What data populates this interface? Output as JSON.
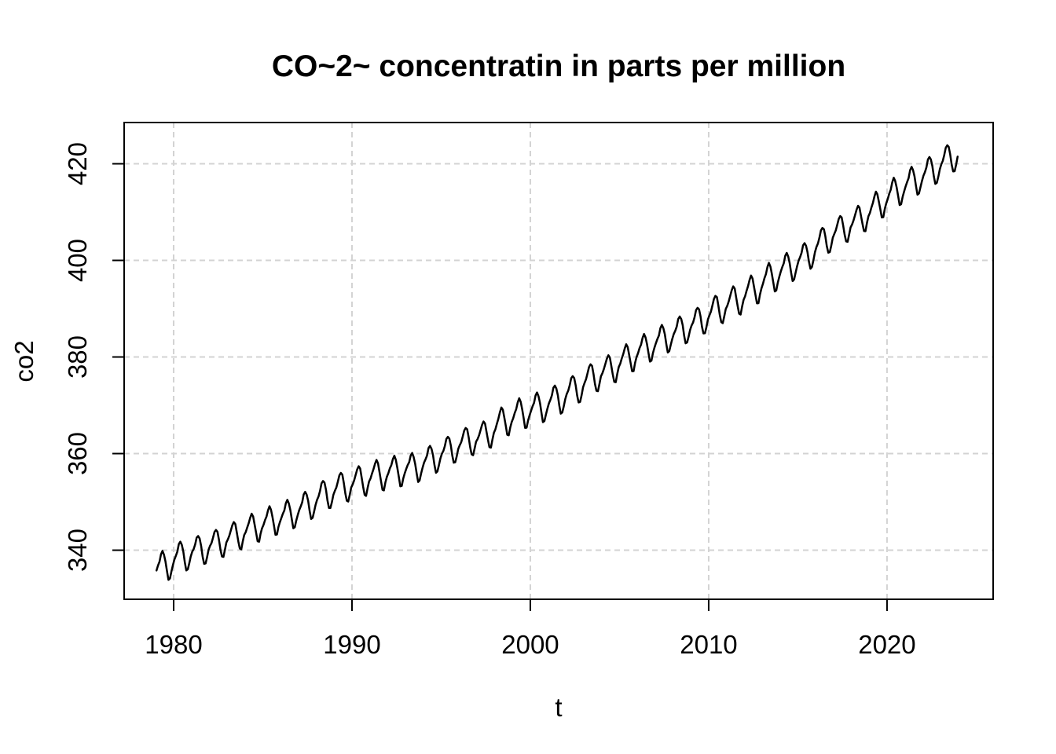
{
  "figure": {
    "background_color": "#ffffff"
  },
  "chart_data": {
    "type": "line",
    "title": "CO~2~ concentratin in parts per million",
    "xlabel": "t",
    "ylabel": "co2",
    "x_ticks": [
      1980,
      1990,
      2000,
      2010,
      2020
    ],
    "y_ticks": [
      340,
      360,
      380,
      400,
      420
    ],
    "xlim": [
      1977.225,
      2025.95
    ],
    "ylim": [
      329.84,
      428.54
    ],
    "grid": true,
    "grid_style": "dashed",
    "legend": "none",
    "colors": {
      "line": "#000000",
      "grid": "#d3d3d3",
      "box": "#000000",
      "text": "#000000",
      "background": "#ffffff"
    },
    "series": [
      {
        "name": "co2",
        "frequency": "monthly",
        "start_year": 1979,
        "end_year": 2023,
        "x_data_range": [
          1979.0,
          2023.96
        ],
        "y_data_range": [
          333.5,
          424.5
        ],
        "annual_means": [
          336.85,
          338.91,
          340.11,
          341.45,
          343.05,
          344.65,
          346.12,
          347.42,
          349.19,
          351.57,
          353.12,
          354.39,
          355.61,
          356.45,
          357.1,
          358.83,
          360.82,
          362.61,
          363.73,
          366.7,
          368.38,
          369.55,
          371.14,
          373.28,
          375.8,
          377.52,
          379.8,
          381.9,
          383.79,
          385.6,
          387.43,
          389.9,
          391.65,
          393.85,
          396.52,
          398.65,
          400.83,
          404.24,
          406.55,
          408.52,
          411.44,
          414.24,
          416.45,
          418.56,
          421.08
        ],
        "seasonal_cycle_offsets": [
          -0.1,
          0.6,
          1.4,
          2.6,
          3.1,
          2.4,
          0.7,
          -1.4,
          -3.2,
          -3.3,
          -2.0,
          -0.8
        ]
      }
    ]
  }
}
